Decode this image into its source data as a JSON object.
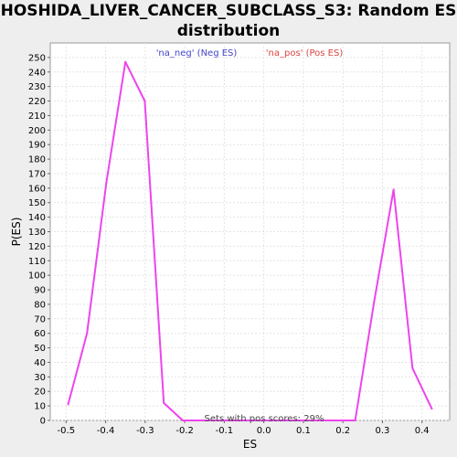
{
  "chart_data": {
    "type": "line",
    "title": "HOSHIDA_LIVER_CANCER_SUBCLASS_S3: Random ES distribution",
    "xlabel": "ES",
    "ylabel": "P(ES)",
    "xlim": [
      -0.54,
      0.47
    ],
    "ylim": [
      0,
      260
    ],
    "xticks": [
      -0.5,
      -0.4,
      -0.3,
      -0.2,
      -0.1,
      0.0,
      0.1,
      0.2,
      0.3,
      0.4
    ],
    "xtick_labels": [
      "-0.5",
      "-0.4",
      "-0.3",
      "-0.2",
      "-0.1",
      "0.0",
      "0.1",
      "0.2",
      "0.3",
      "0.4"
    ],
    "yticks": [
      0,
      10,
      20,
      30,
      40,
      50,
      60,
      70,
      80,
      90,
      100,
      110,
      120,
      130,
      140,
      150,
      160,
      170,
      180,
      190,
      200,
      210,
      220,
      230,
      240,
      250
    ],
    "grid": true,
    "series": [
      {
        "name": "ES distribution",
        "color": "#ee44ee",
        "x": [
          -0.495,
          -0.447,
          -0.398,
          -0.35,
          -0.301,
          -0.253,
          -0.205,
          -0.156,
          -0.108,
          -0.059,
          -0.011,
          0.037,
          0.086,
          0.134,
          0.183,
          0.231,
          0.279,
          0.328,
          0.376,
          0.425
        ],
        "values": [
          11,
          60,
          164,
          247,
          220,
          12,
          0,
          0,
          0,
          0,
          0,
          0,
          0,
          0,
          0,
          0,
          82,
          159,
          36,
          8
        ]
      }
    ],
    "legend": [
      {
        "label": "'na_neg' (Neg ES)",
        "color": "#4444cc"
      },
      {
        "label": "'na_pos' (Pos ES)",
        "color": "#dd4444"
      }
    ],
    "annotation": "Sets with pos scores: 29%"
  }
}
